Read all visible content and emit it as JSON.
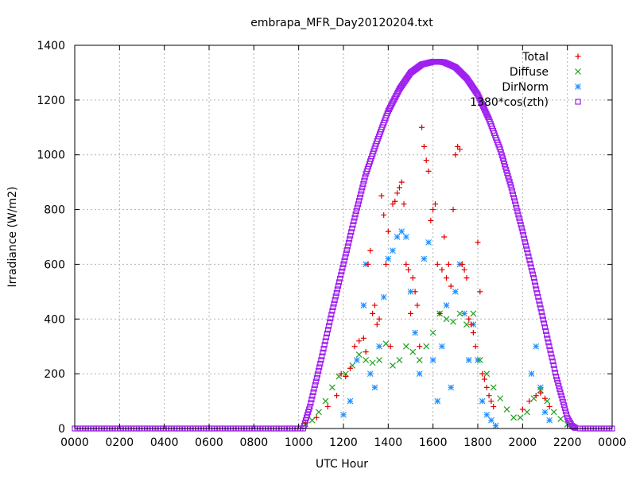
{
  "chart_data": {
    "type": "scatter",
    "title": "embrapa_MFR_Day20120204.txt",
    "xlabel": "UTC Hour",
    "ylabel": "Irradiance (W/m2)",
    "xlim": [
      0,
      2400
    ],
    "ylim": [
      0,
      1400
    ],
    "x_ticks": [
      "0000",
      "0200",
      "0400",
      "0600",
      "0800",
      "1000",
      "1200",
      "1400",
      "1600",
      "1800",
      "2000",
      "2200",
      "0000"
    ],
    "y_ticks": [
      "0",
      "200",
      "400",
      "600",
      "800",
      "1000",
      "1200",
      "1400"
    ],
    "grid": true,
    "legend_position": "top-right",
    "colors": {
      "total": "#e00000",
      "diffuse": "#1fa01f",
      "dirnorm": "#1e90ff",
      "cos": "#a020f0"
    },
    "series": [
      {
        "name": "Total",
        "marker": "+",
        "x": [
          1030,
          1080,
          1130,
          1170,
          1190,
          1210,
          1230,
          1250,
          1270,
          1290,
          1300,
          1310,
          1320,
          1330,
          1340,
          1350,
          1360,
          1370,
          1380,
          1390,
          1400,
          1410,
          1420,
          1430,
          1440,
          1450,
          1460,
          1470,
          1480,
          1490,
          1500,
          1510,
          1520,
          1530,
          1540,
          1550,
          1560,
          1570,
          1580,
          1590,
          1600,
          1610,
          1620,
          1630,
          1640,
          1650,
          1660,
          1670,
          1680,
          1690,
          1700,
          1710,
          1720,
          1730,
          1740,
          1750,
          1760,
          1770,
          1780,
          1790,
          1800,
          1810,
          1820,
          1830,
          1840,
          1850,
          1860,
          1870,
          2000,
          2030,
          2060,
          2080,
          2100,
          2120
        ],
        "y": [
          20,
          40,
          80,
          120,
          200,
          190,
          220,
          300,
          320,
          330,
          280,
          600,
          650,
          420,
          450,
          380,
          400,
          850,
          780,
          600,
          720,
          300,
          820,
          830,
          860,
          880,
          900,
          820,
          600,
          580,
          420,
          550,
          500,
          450,
          300,
          1100,
          1030,
          980,
          940,
          760,
          800,
          820,
          600,
          420,
          580,
          700,
          550,
          600,
          520,
          800,
          1000,
          1030,
          1020,
          600,
          580,
          550,
          400,
          380,
          350,
          300,
          680,
          500,
          200,
          180,
          150,
          120,
          100,
          80,
          70,
          100,
          120,
          130,
          110,
          80
        ]
      },
      {
        "name": "Diffuse",
        "marker": "x",
        "x": [
          1030,
          1060,
          1090,
          1120,
          1150,
          1180,
          1210,
          1240,
          1270,
          1300,
          1330,
          1360,
          1390,
          1420,
          1450,
          1480,
          1510,
          1540,
          1570,
          1600,
          1630,
          1660,
          1690,
          1720,
          1750,
          1780,
          1810,
          1840,
          1870,
          1900,
          1930,
          1960,
          1990,
          2020,
          2050,
          2080,
          2110,
          2140,
          2170,
          2200
        ],
        "y": [
          15,
          30,
          60,
          100,
          150,
          190,
          200,
          230,
          270,
          250,
          240,
          250,
          310,
          230,
          250,
          300,
          280,
          250,
          300,
          350,
          420,
          400,
          390,
          420,
          380,
          420,
          250,
          200,
          150,
          110,
          70,
          40,
          40,
          60,
          110,
          140,
          100,
          60,
          35,
          15
        ]
      },
      {
        "name": "DirNorm",
        "marker": "*",
        "x": [
          1200,
          1230,
          1260,
          1290,
          1300,
          1320,
          1340,
          1360,
          1380,
          1400,
          1420,
          1440,
          1460,
          1480,
          1500,
          1520,
          1540,
          1560,
          1580,
          1600,
          1620,
          1640,
          1660,
          1680,
          1700,
          1720,
          1740,
          1760,
          1780,
          1800,
          1820,
          1840,
          1860,
          1880,
          2040,
          2060,
          2080,
          2100,
          2120
        ],
        "y": [
          50,
          100,
          250,
          450,
          600,
          200,
          150,
          300,
          480,
          620,
          650,
          700,
          720,
          700,
          500,
          350,
          200,
          620,
          680,
          250,
          100,
          300,
          450,
          150,
          500,
          600,
          420,
          250,
          380,
          250,
          100,
          50,
          30,
          10,
          200,
          300,
          150,
          60,
          30
        ]
      },
      {
        "name": "1380*cos(zth)",
        "marker": "square",
        "x": [
          1020,
          1050,
          1100,
          1150,
          1200,
          1250,
          1300,
          1350,
          1400,
          1450,
          1500,
          1550,
          1600,
          1630,
          1650,
          1700,
          1750,
          1800,
          1850,
          1900,
          1950,
          2000,
          2050,
          2100,
          2150,
          2200,
          2220,
          2240
        ],
        "y": [
          0,
          80,
          250,
          430,
          600,
          770,
          930,
          1050,
          1160,
          1240,
          1300,
          1330,
          1340,
          1340,
          1338,
          1320,
          1280,
          1220,
          1130,
          1020,
          880,
          720,
          550,
          370,
          190,
          40,
          10,
          0
        ]
      }
    ]
  }
}
